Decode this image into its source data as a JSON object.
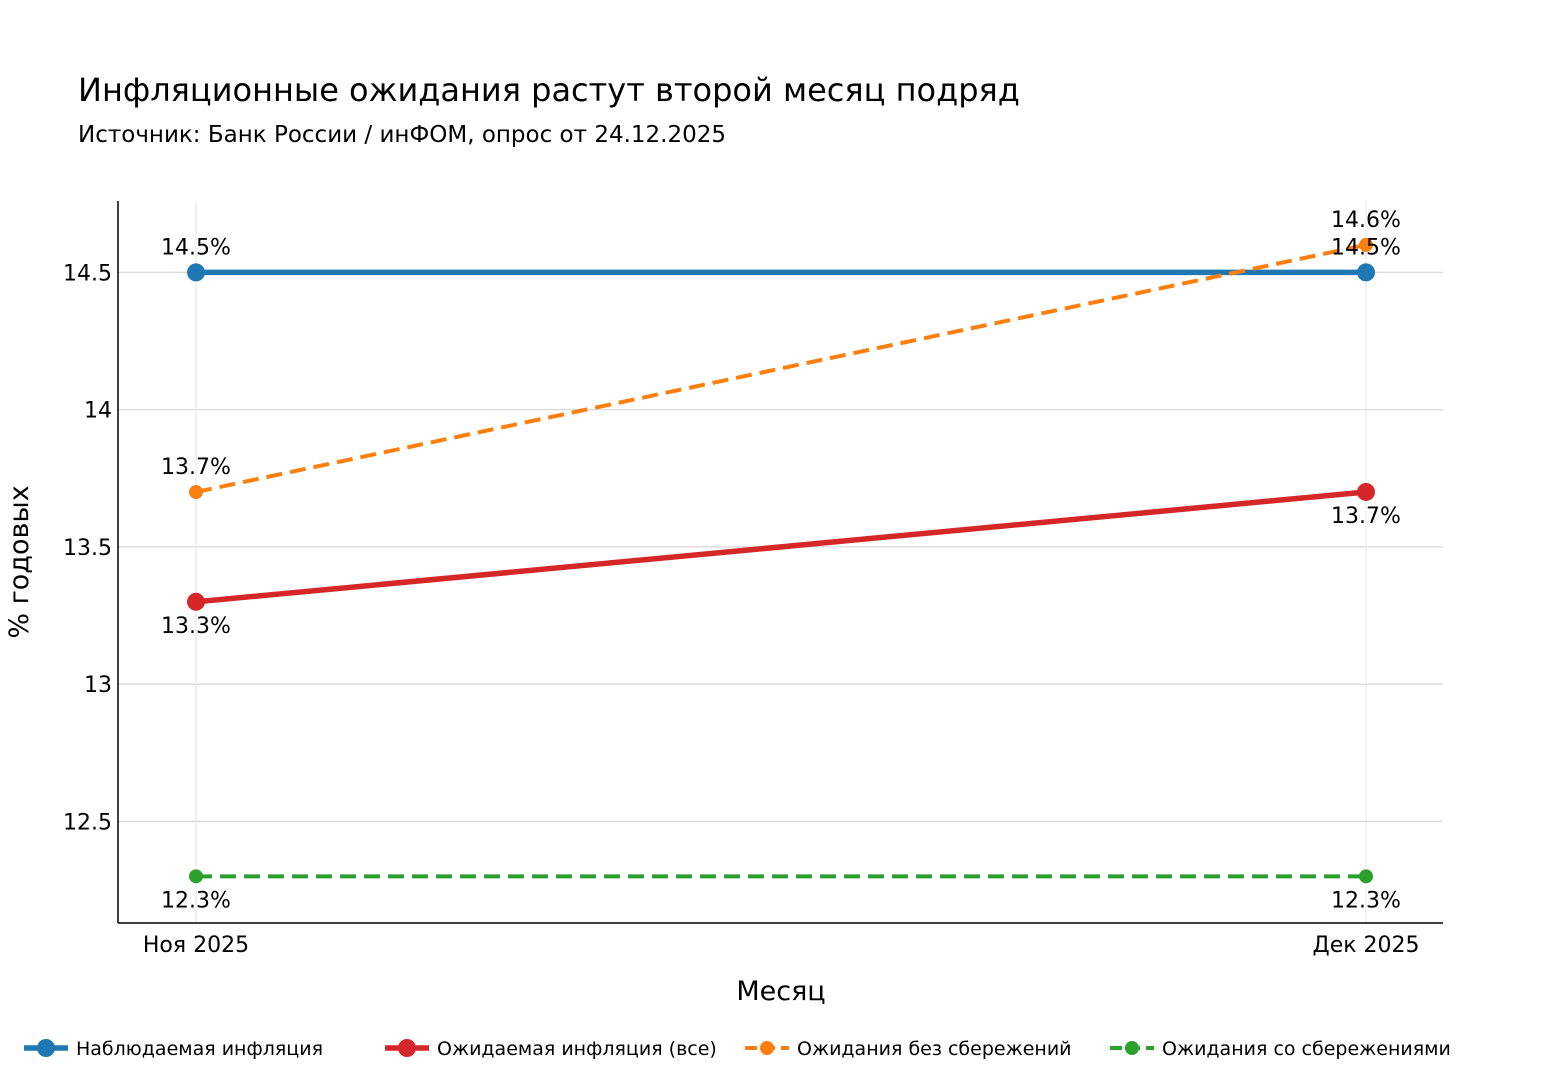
{
  "chart_data": {
    "type": "line",
    "title": "Инфляционные ожидания растут второй месяц подряд",
    "subtitle": "Источник: Банк России / инФОМ, опрос от 24.12.2025",
    "xlabel": "Месяц",
    "ylabel": "% годовых",
    "categories": [
      "Ноя 2025",
      "Дек 2025"
    ],
    "ylim": [
      12.13,
      14.76
    ],
    "yticks": [
      12.5,
      13,
      13.5,
      14,
      14.5
    ],
    "ytick_labels": [
      "12.5",
      "13",
      "13.5",
      "14",
      "14.5"
    ],
    "grid": true,
    "legend_position": "bottom",
    "series": [
      {
        "name": "Наблюдаемая инфляция",
        "values": [
          14.5,
          14.5
        ],
        "labels": [
          "14.5%",
          "14.5%"
        ],
        "label_position": [
          "above",
          "above"
        ],
        "color": "#1f77b4",
        "style": "solid",
        "marker": "large"
      },
      {
        "name": "Ожидаемая инфляция (все)",
        "values": [
          13.3,
          13.7
        ],
        "labels": [
          "13.3%",
          "13.7%"
        ],
        "label_position": [
          "below",
          "below"
        ],
        "color": "#d62728",
        "style": "solid",
        "marker": "large"
      },
      {
        "name": "Ожидания без сбережений",
        "values": [
          13.7,
          14.6
        ],
        "labels": [
          "13.7%",
          "14.6%"
        ],
        "label_position": [
          "above",
          "above"
        ],
        "color": "#ff7f0e",
        "style": "dashed",
        "marker": "small"
      },
      {
        "name": "Ожидания со сбережениями",
        "values": [
          12.3,
          12.3
        ],
        "labels": [
          "12.3%",
          "12.3%"
        ],
        "label_position": [
          "below",
          "below"
        ],
        "color": "#2ca02c",
        "style": "dashed",
        "marker": "small"
      }
    ]
  }
}
